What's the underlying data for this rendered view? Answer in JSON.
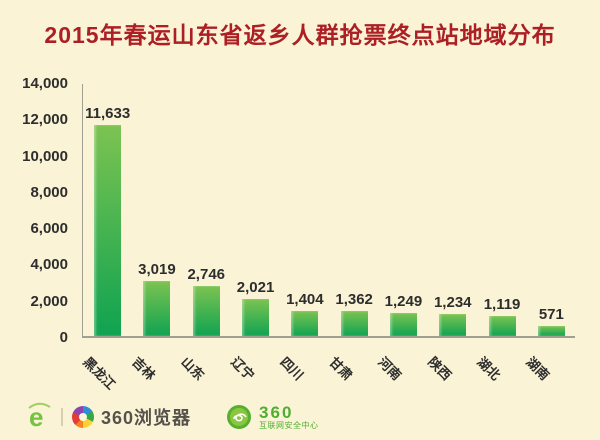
{
  "title": "2015年春运山东省返乡人群抢票终点站地域分布",
  "colors": {
    "background": "#faf3d6",
    "title": "#ac1f24",
    "text": "#2d2d2d",
    "axis": "#a19e92",
    "bar_top": "#7cc351",
    "bar_bottom": "#0fa351",
    "footer_green": "#4fae2f",
    "footer_text": "#55524b"
  },
  "chart_data": {
    "type": "bar",
    "title": "2015年春运山东省返乡人群抢票终点站地域分布",
    "categories": [
      "黑龙江",
      "吉林",
      "山东",
      "辽宁",
      "四川",
      "甘肃",
      "河南",
      "陕西",
      "湖北",
      "湖南"
    ],
    "values": [
      11633,
      3019,
      2746,
      2021,
      1404,
      1362,
      1249,
      1234,
      1119,
      571
    ],
    "value_labels": [
      "11,633",
      "3,019",
      "2,746",
      "2,021",
      "1,404",
      "1,362",
      "1,249",
      "1,234",
      "1,119",
      "571"
    ],
    "xlabel": "",
    "ylabel": "",
    "ylim": [
      0,
      14000
    ],
    "yticks": [
      0,
      2000,
      4000,
      6000,
      8000,
      10000,
      12000,
      14000
    ],
    "ytick_labels": [
      "0",
      "2,000",
      "4,000",
      "6,000",
      "8,000",
      "10,000",
      "12,000",
      "14,000"
    ],
    "grid": false,
    "legend": null,
    "bar_gradient": [
      "#7cc351",
      "#0fa351"
    ]
  },
  "footer": {
    "separator": "|",
    "browser_label": "360浏览器",
    "security_brand": "360",
    "security_label": "互联网安全中心"
  },
  "icons": {
    "e_logo": "green-e-browser-icon",
    "pinwheel": "360-browser-pinwheel-icon",
    "security_badge": "360-security-badge-icon"
  }
}
